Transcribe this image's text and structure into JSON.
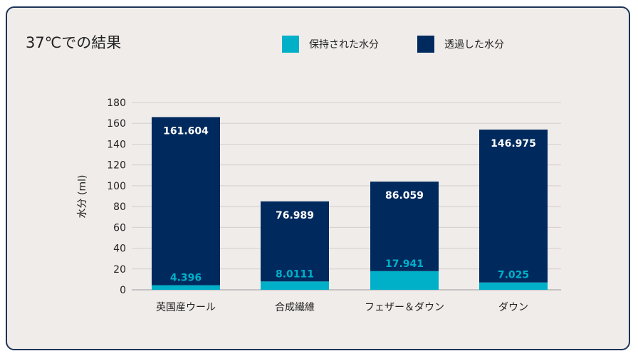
{
  "chart_data": {
    "type": "bar",
    "stacked": true,
    "title": "37℃での結果",
    "ylabel": "水分 (ml)",
    "xlabel": "",
    "ylim": [
      0,
      180
    ],
    "yticks": [
      0,
      20,
      40,
      60,
      80,
      100,
      120,
      140,
      160,
      180
    ],
    "grid": true,
    "legend_position": "top-right",
    "categories": [
      "英国産ウール",
      "合成繊維",
      "フェザー＆ダウン",
      "ダウン"
    ],
    "series": [
      {
        "name": "保持された水分",
        "color": "#00b0c8",
        "values": [
          4.396,
          8.0111,
          17.941,
          7.025
        ],
        "labels": [
          "4.396",
          "8.0111",
          "17.941",
          "7.025"
        ]
      },
      {
        "name": "透過した水分",
        "color": "#002a5e",
        "values": [
          161.604,
          76.989,
          86.059,
          146.975
        ],
        "labels": [
          "161.604",
          "76.989",
          "86.059",
          "146.975"
        ]
      }
    ]
  }
}
